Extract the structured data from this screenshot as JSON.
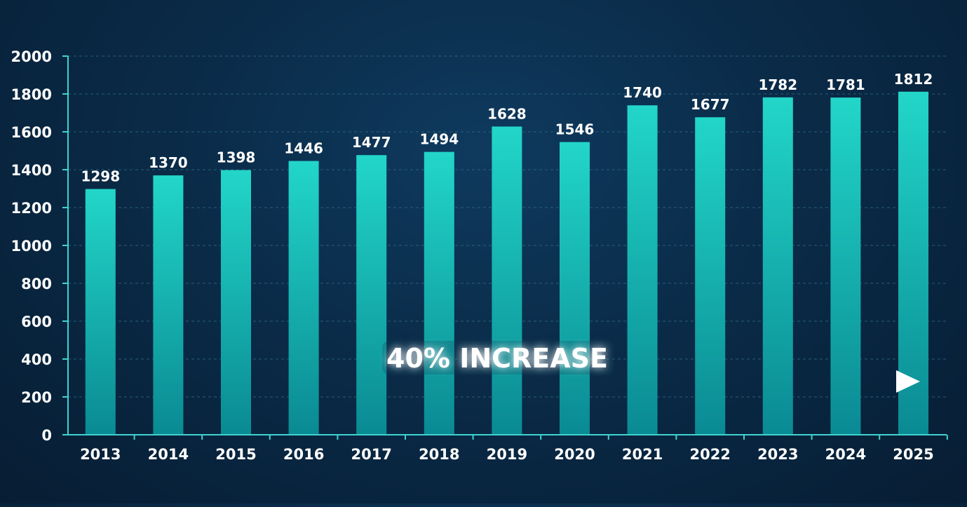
{
  "chart_data": {
    "type": "bar",
    "categories": [
      "2013",
      "2014",
      "2015",
      "2016",
      "2017",
      "2018",
      "2019",
      "2020",
      "2021",
      "2022",
      "2023",
      "2024",
      "2025"
    ],
    "series": [
      {
        "values": [
          1298,
          1370,
          1398,
          1446,
          1477,
          1494,
          1628,
          1546,
          1740,
          1677,
          1782,
          1781,
          1812
        ]
      }
    ],
    "data_labels": [
      "1298",
      "1370",
      "1398",
      "1446",
      "1477",
      "1494",
      "1628",
      "1546",
      "1740",
      "1677",
      "1782",
      "1781",
      "1812"
    ],
    "yticks": [
      "0",
      "200",
      "400",
      "600",
      "800",
      "1000",
      "1200",
      "1400",
      "1600",
      "1800",
      "2000"
    ],
    "ylim": [
      0,
      2000
    ],
    "grid": true,
    "annotation": {
      "text": "40% INCREASE",
      "arrow_direction": "right"
    },
    "colors": {
      "bar_top": "#22d6c8",
      "bar_bottom": "#0a8a93",
      "axis": "#3fd3d0",
      "grid": "#2f6b86",
      "text": "#ffffff",
      "arrow": "#ffffff"
    }
  }
}
